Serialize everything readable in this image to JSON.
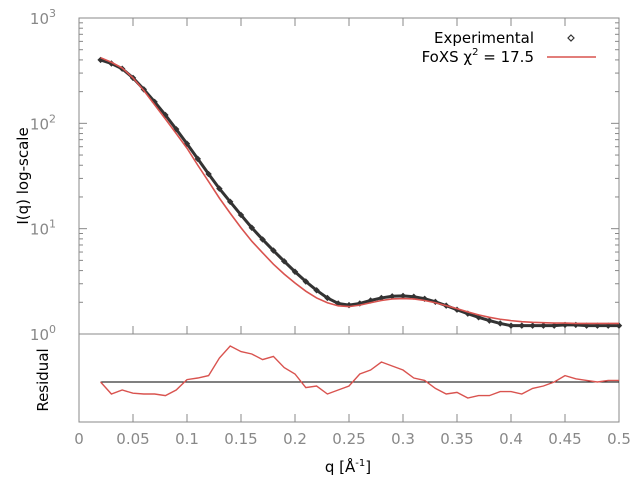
{
  "chart_data": [
    {
      "type": "scatter",
      "title": "",
      "xlabel": "q [Å⁻¹]",
      "xlabel_parts": {
        "base": "q [Å",
        "sup": "-1",
        "close": "]"
      },
      "ylabel": "I(q) log-scale",
      "yscale": "log",
      "ylim": [
        1,
        1000
      ],
      "xlim": [
        0,
        0.5
      ],
      "y_ticks": [
        {
          "value": 1,
          "base": "10",
          "exp": "0"
        },
        {
          "value": 10,
          "base": "10",
          "exp": "1"
        },
        {
          "value": 100,
          "base": "10",
          "exp": "2"
        },
        {
          "value": 1000,
          "base": "10",
          "exp": "3"
        }
      ],
      "legend": {
        "placement": "top-right",
        "experimental": "Experimental",
        "fit_prefix": "FoXS χ",
        "fit_exp": "2",
        "fit_suffix": " = 17.5"
      },
      "colors": {
        "experimental": "#333333",
        "fit": "#d9534f",
        "axis": "#888888",
        "zero": "#000000"
      },
      "series": [
        {
          "name": "Experimental",
          "x": [
            0.02,
            0.03,
            0.04,
            0.05,
            0.06,
            0.07,
            0.08,
            0.09,
            0.1,
            0.11,
            0.12,
            0.13,
            0.14,
            0.15,
            0.16,
            0.17,
            0.18,
            0.19,
            0.2,
            0.21,
            0.22,
            0.23,
            0.24,
            0.25,
            0.26,
            0.27,
            0.28,
            0.29,
            0.3,
            0.31,
            0.32,
            0.33,
            0.34,
            0.35,
            0.36,
            0.37,
            0.38,
            0.39,
            0.4,
            0.41,
            0.42,
            0.43,
            0.44,
            0.45,
            0.46,
            0.47,
            0.48,
            0.49,
            0.5
          ],
          "y": [
            400,
            370,
            330,
            270,
            210,
            160,
            120,
            88,
            64,
            46,
            33,
            24,
            18,
            13.5,
            10.2,
            7.9,
            6.2,
            4.9,
            3.9,
            3.15,
            2.6,
            2.2,
            1.95,
            1.88,
            1.95,
            2.08,
            2.2,
            2.28,
            2.3,
            2.26,
            2.16,
            2.02,
            1.86,
            1.7,
            1.56,
            1.44,
            1.34,
            1.26,
            1.2,
            1.2,
            1.2,
            1.2,
            1.2,
            1.22,
            1.22,
            1.2,
            1.2,
            1.2,
            1.2
          ]
        },
        {
          "name": "FoXS χ2 = 17.5",
          "x": [
            0.02,
            0.03,
            0.04,
            0.05,
            0.06,
            0.07,
            0.08,
            0.09,
            0.1,
            0.11,
            0.12,
            0.13,
            0.14,
            0.15,
            0.16,
            0.17,
            0.18,
            0.19,
            0.2,
            0.21,
            0.22,
            0.23,
            0.24,
            0.25,
            0.26,
            0.27,
            0.28,
            0.29,
            0.3,
            0.31,
            0.32,
            0.33,
            0.34,
            0.35,
            0.36,
            0.37,
            0.38,
            0.39,
            0.4,
            0.41,
            0.42,
            0.43,
            0.44,
            0.45,
            0.46,
            0.47,
            0.48,
            0.49,
            0.5
          ],
          "y": [
            420,
            380,
            335,
            270,
            205,
            150,
            110,
            80,
            58,
            40,
            28,
            19.5,
            14,
            10.2,
            7.6,
            5.9,
            4.6,
            3.7,
            3.05,
            2.55,
            2.2,
            1.98,
            1.85,
            1.82,
            1.88,
            1.98,
            2.08,
            2.15,
            2.17,
            2.15,
            2.08,
            1.98,
            1.86,
            1.74,
            1.62,
            1.52,
            1.44,
            1.38,
            1.34,
            1.31,
            1.29,
            1.28,
            1.27,
            1.27,
            1.26,
            1.26,
            1.26,
            1.26,
            1.26
          ]
        }
      ]
    },
    {
      "type": "line",
      "ylabel": "Residual",
      "x_ticks": [
        "0",
        "0.05",
        "0.1",
        "0.15",
        "0.2",
        "0.25",
        "0.3",
        "0.35",
        "0.4",
        "0.45",
        "0.5"
      ],
      "ylim": [
        -0.5,
        0.6
      ],
      "series": [
        {
          "name": "Residual",
          "x": [
            0.02,
            0.03,
            0.04,
            0.05,
            0.06,
            0.07,
            0.08,
            0.09,
            0.1,
            0.11,
            0.12,
            0.13,
            0.14,
            0.15,
            0.16,
            0.17,
            0.18,
            0.19,
            0.2,
            0.21,
            0.22,
            0.23,
            0.24,
            0.25,
            0.26,
            0.27,
            0.28,
            0.29,
            0.3,
            0.31,
            0.32,
            0.33,
            0.34,
            0.35,
            0.36,
            0.37,
            0.38,
            0.39,
            0.4,
            0.41,
            0.42,
            0.43,
            0.44,
            0.45,
            0.46,
            0.47,
            0.48,
            0.49,
            0.5
          ],
          "y": [
            0.0,
            -0.15,
            -0.1,
            -0.14,
            -0.15,
            -0.15,
            -0.17,
            -0.1,
            0.03,
            0.05,
            0.08,
            0.3,
            0.45,
            0.38,
            0.35,
            0.28,
            0.32,
            0.18,
            0.1,
            -0.07,
            -0.05,
            -0.15,
            -0.1,
            -0.05,
            0.1,
            0.15,
            0.25,
            0.2,
            0.15,
            0.05,
            0.02,
            -0.08,
            -0.15,
            -0.13,
            -0.2,
            -0.17,
            -0.17,
            -0.12,
            -0.12,
            -0.15,
            -0.08,
            -0.05,
            0.0,
            0.08,
            0.04,
            0.02,
            0.0,
            0.02,
            0.02
          ]
        }
      ]
    }
  ]
}
